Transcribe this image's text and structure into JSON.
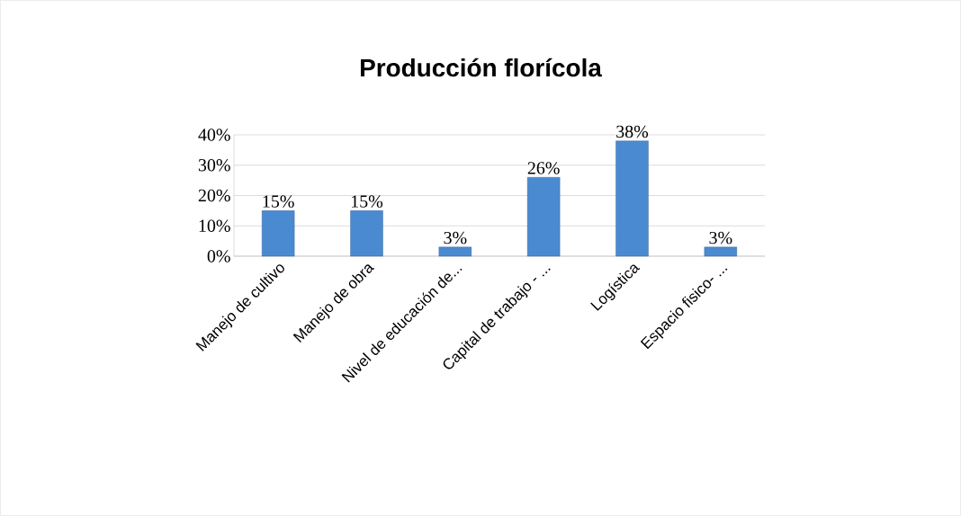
{
  "chart_data": {
    "type": "bar",
    "title": "Producción florícola",
    "categories": [
      "Manejo de cultivo",
      "Manejo de obra",
      "Nivel de educación de...",
      "Capital de trabajo - ...",
      "Logística",
      "Espacio fisico- ..."
    ],
    "values": [
      15,
      15,
      3,
      26,
      38,
      3
    ],
    "value_labels": [
      "15%",
      "15%",
      "3%",
      "26%",
      "38%",
      "3%"
    ],
    "color": "#4a8ad0",
    "ylim": [
      0,
      40
    ],
    "yticks": [
      {
        "value": 0,
        "label": "0%"
      },
      {
        "value": 10,
        "label": "10%"
      },
      {
        "value": 20,
        "label": "20%"
      },
      {
        "value": 30,
        "label": "30%"
      },
      {
        "value": 40,
        "label": "40%"
      }
    ],
    "grid": "y"
  }
}
